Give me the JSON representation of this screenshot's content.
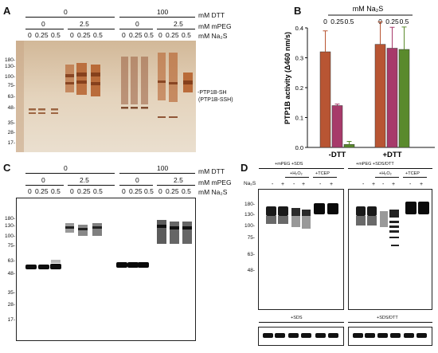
{
  "panels": {
    "A": "A",
    "B": "B",
    "C": "C",
    "D": "D"
  },
  "gelA": {
    "dtt_values": [
      "0",
      "100"
    ],
    "mpeg_values": [
      "0",
      "2.5",
      "0",
      "2.5"
    ],
    "na2s_values": [
      "0",
      "0.25",
      "0.5",
      "0",
      "0.25",
      "0.5",
      "0",
      "0.25",
      "0.5",
      "0",
      "0.25",
      "0.5"
    ],
    "row_labels": {
      "dtt": "mM DTT",
      "mpeg": "mM mPEG",
      "na2s": "mM Na₂S"
    },
    "mw_markers": [
      "180-",
      "130-",
      "100-",
      "75-",
      "63-",
      "48-",
      "35-",
      "28-",
      "17-"
    ],
    "band_annotation_line1": "-PTP1B-SH",
    "band_annotation_line2": "(PTP1B-SSH)"
  },
  "gelC": {
    "dtt_values": [
      "0",
      "100"
    ],
    "mpeg_values": [
      "0",
      "2.5",
      "0",
      "2.5"
    ],
    "na2s_values": [
      "0",
      "0.25",
      "0.5",
      "0",
      "0.25",
      "0.5",
      "0",
      "0.25",
      "0.5",
      "0",
      "0.25",
      "0.5"
    ],
    "row_labels": {
      "dtt": "mM DTT",
      "mpeg": "mM mPEG",
      "na2s": "mM Na₂S"
    },
    "mw_markers": [
      "180-",
      "130-",
      "100-",
      "75-",
      "63-",
      "48-",
      "35-",
      "28-",
      "17-"
    ]
  },
  "chart_data": {
    "type": "bar",
    "title": "mM Na₂S",
    "ylabel": "PTP1B activity (Δ460 nm/s)",
    "ylim": [
      0,
      0.4
    ],
    "yticks": [
      "0.0",
      "0.1",
      "0.2",
      "0.3",
      "0.4"
    ],
    "groups": [
      "-DTT",
      "+DTT"
    ],
    "series_labels": [
      "0",
      "0.25",
      "0.5"
    ],
    "values": [
      [
        0.32,
        0.14,
        0.01
      ],
      [
        0.345,
        0.332,
        0.328
      ]
    ],
    "errors": [
      [
        0.07,
        0.005,
        0.01
      ],
      [
        0.075,
        0.07,
        0.075
      ]
    ],
    "colors": [
      "#b85533",
      "#a73a6a",
      "#5a8a2c"
    ]
  },
  "panelD": {
    "left": {
      "title": "+mPEG +SDS",
      "h2o2": "+H₂O₂",
      "tcep": "+TCEP"
    },
    "right": {
      "title": "+mPEG +SDS/DTT",
      "h2o2": "+H₂O₂",
      "tcep": "+TCEP"
    },
    "na2s_label": "Na₂S",
    "signs": [
      "-",
      "+",
      "-",
      "+",
      "-",
      "+"
    ],
    "mw_markers": [
      "180-",
      "130-",
      "100-",
      "75-",
      "63-",
      "48-"
    ],
    "bottom_left_title": "+SDS",
    "bottom_right_title": "+SDS/DTT"
  }
}
